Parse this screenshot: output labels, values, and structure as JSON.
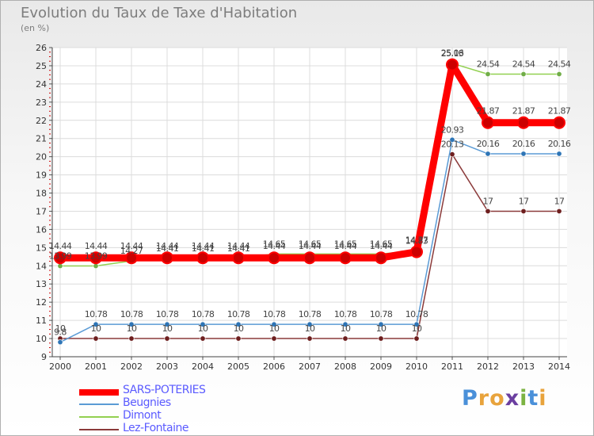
{
  "chart_data": {
    "type": "line",
    "title": "Evolution du Taux de Taxe d'Habitation",
    "unit_label": "(en %)",
    "x": [
      "2000",
      "2001",
      "2002",
      "2003",
      "2004",
      "2005",
      "2006",
      "2007",
      "2008",
      "2009",
      "2010",
      "2011",
      "2012",
      "2013",
      "2014"
    ],
    "ylim": [
      9,
      26
    ],
    "yticks": [
      "9",
      "10",
      "11",
      "12",
      "13",
      "14",
      "15",
      "16",
      "17",
      "18",
      "19",
      "20",
      "21",
      "22",
      "23",
      "24",
      "25",
      "26"
    ],
    "grid": true,
    "legend_position": "bottom-left",
    "series": [
      {
        "name": "SARS-POTERIES",
        "color": "#ff0000",
        "marker": "#cc0000",
        "values": [
          14.44,
          14.44,
          14.44,
          14.44,
          14.44,
          14.44,
          14.44,
          14.44,
          14.44,
          14.44,
          14.77,
          25.06,
          21.87,
          21.87,
          21.87
        ],
        "labels": [
          "14.44",
          "14.44",
          "14.44",
          "14.44",
          "14.44",
          "14.44",
          "14.44",
          "14.44",
          "14.44",
          "14.44",
          "14.77",
          "25.06",
          "21.87",
          "21.87",
          "21.87"
        ]
      },
      {
        "name": "Beugnies",
        "color": "#5b9bd5",
        "marker": "#2e75b6",
        "values": [
          9.8,
          10.78,
          10.78,
          10.78,
          10.78,
          10.78,
          10.78,
          10.78,
          10.78,
          10.78,
          10.78,
          20.93,
          20.16,
          20.16,
          20.16
        ],
        "labels": [
          "9.8",
          "10.78",
          "10.78",
          "10.78",
          "10.78",
          "10.78",
          "10.78",
          "10.78",
          "10.78",
          "10.78",
          "10.78",
          "20.93",
          "20.16",
          "20.16",
          "20.16"
        ]
      },
      {
        "name": "Dimont",
        "color": "#92d050",
        "marker": "#70ad47",
        "values": [
          13.99,
          13.99,
          14.27,
          14.41,
          14.41,
          14.41,
          14.65,
          14.65,
          14.65,
          14.65,
          14.83,
          25.13,
          24.54,
          24.54,
          24.54
        ],
        "labels": [
          "13.99",
          "13.99",
          "14.27",
          "14.41",
          "14.41",
          "14.41",
          "14.65",
          "14.65",
          "14.65",
          "14.65",
          "14.83",
          "25.13",
          "24.54",
          "24.54",
          "24.54"
        ]
      },
      {
        "name": "Lez-Fontaine",
        "color": "#8b3a3a",
        "marker": "#6e1f1f",
        "values": [
          10,
          10,
          10,
          10,
          10,
          10,
          10,
          10,
          10,
          10,
          10,
          20.13,
          17,
          17,
          17
        ],
        "labels": [
          "10",
          "10",
          "10",
          "10",
          "10",
          "10",
          "10",
          "10",
          "10",
          "10",
          "10",
          "20.13",
          "17",
          "17",
          "17"
        ]
      }
    ]
  },
  "logo": {
    "text": "Proxiti",
    "letters": [
      "P",
      "r",
      "o",
      "x",
      "i",
      "t",
      "i"
    ],
    "colors": [
      "#4a90d9",
      "#e8a33c",
      "#e8a33c",
      "#6b3fa0",
      "#7cb342",
      "#4a90d9",
      "#e8a33c"
    ]
  }
}
